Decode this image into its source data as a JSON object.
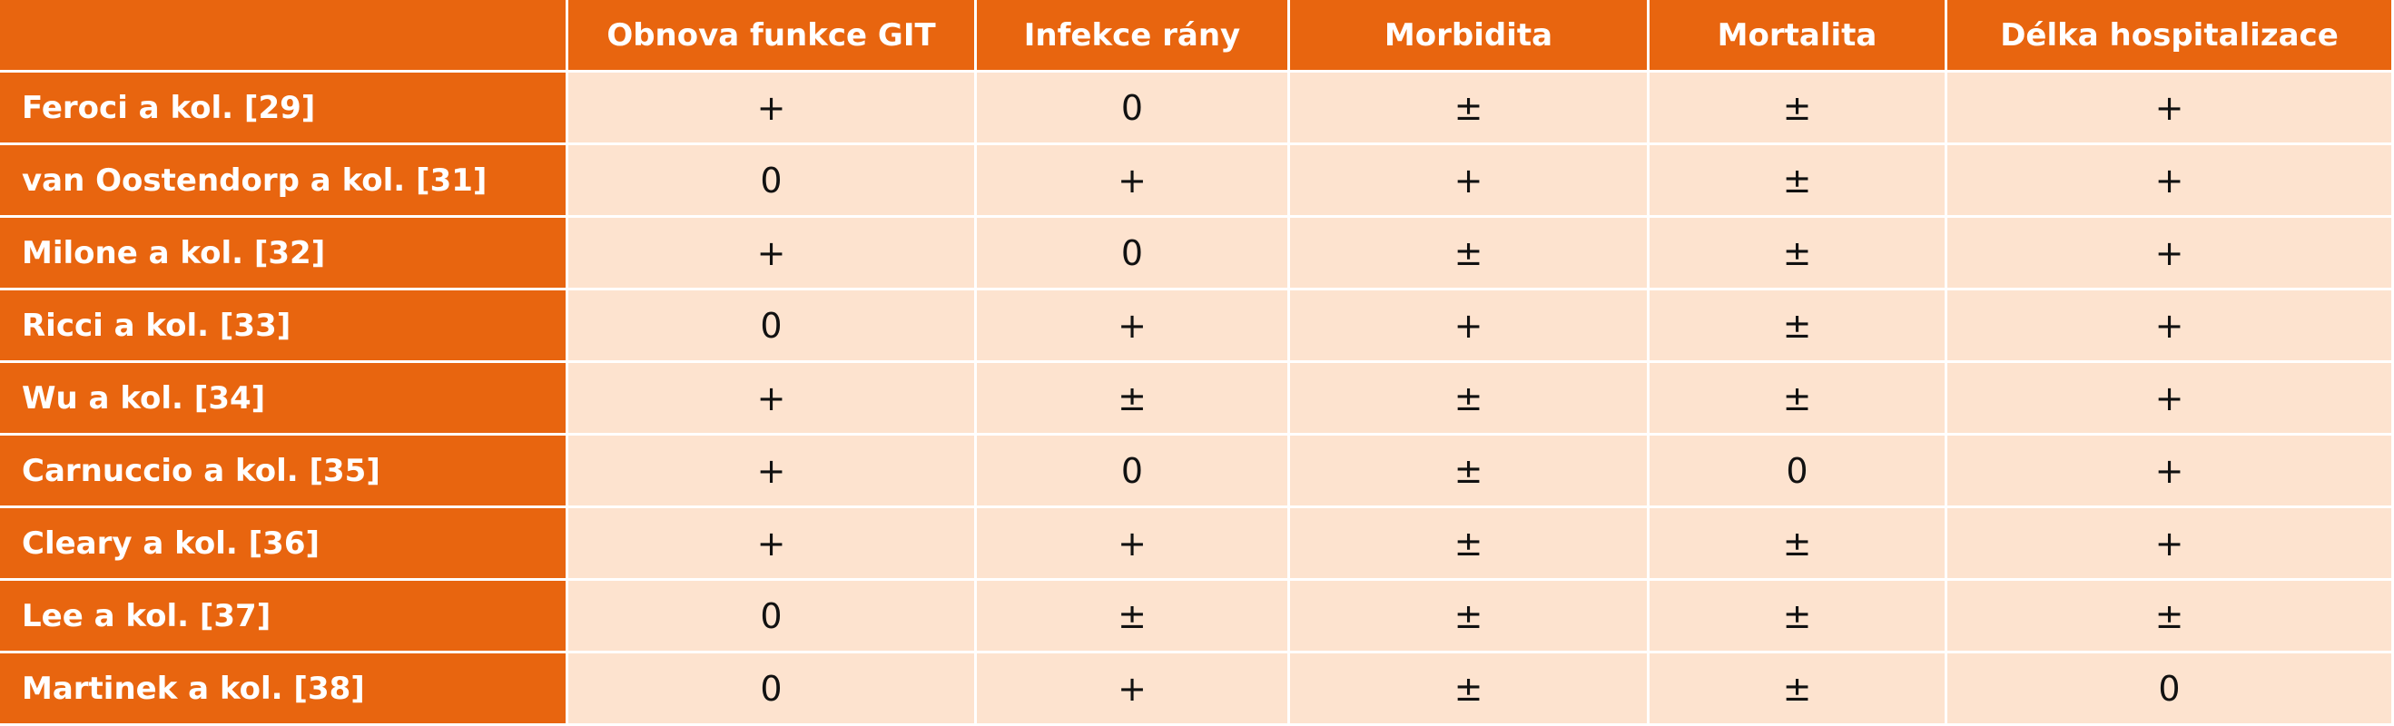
{
  "table": {
    "columns": [
      "Obnova funkce GIT",
      "Infekce rány",
      "Morbidita",
      "Mortalita",
      "Délka hospitalizace"
    ],
    "rows": [
      {
        "label": "Feroci a kol. [29]",
        "cells": [
          "+",
          "0",
          "±",
          "±",
          "+"
        ]
      },
      {
        "label": "van Oostendorp a kol. [31]",
        "cells": [
          "0",
          "+",
          "+",
          "±",
          "+"
        ]
      },
      {
        "label": "Milone a kol. [32]",
        "cells": [
          "+",
          "0",
          "±",
          "±",
          "+"
        ]
      },
      {
        "label": "Ricci a kol. [33]",
        "cells": [
          "0",
          "+",
          "+",
          "±",
          "+"
        ]
      },
      {
        "label": "Wu a kol. [34]",
        "cells": [
          "+",
          "±",
          "±",
          "±",
          "+"
        ]
      },
      {
        "label": "Carnuccio a kol. [35]",
        "cells": [
          "+",
          "0",
          "±",
          "0",
          "+"
        ]
      },
      {
        "label": "Cleary a kol. [36]",
        "cells": [
          "+",
          "+",
          "±",
          "±",
          "+"
        ]
      },
      {
        "label": "Lee a kol. [37]",
        "cells": [
          "0",
          "±",
          "±",
          "±",
          "±"
        ]
      },
      {
        "label": "Martinek a kol. [38]",
        "cells": [
          "0",
          "+",
          "±",
          "±",
          "0"
        ]
      }
    ]
  }
}
